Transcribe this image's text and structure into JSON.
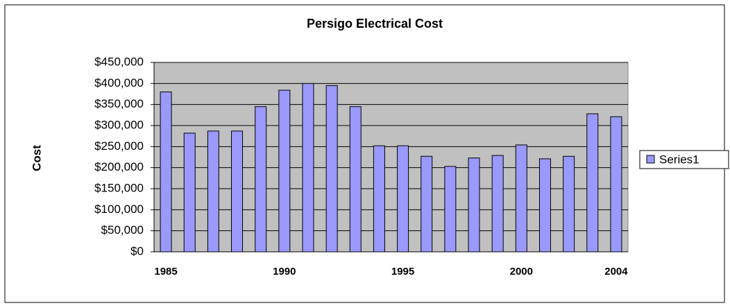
{
  "chart_data": {
    "type": "bar",
    "title": "Persigo Electrical Cost",
    "y_label": "Cost",
    "categories": [
      "1985",
      null,
      null,
      null,
      null,
      "1990",
      null,
      null,
      null,
      null,
      "1995",
      null,
      null,
      null,
      null,
      "2000",
      null,
      null,
      null,
      "2004"
    ],
    "series": [
      {
        "name": "Series1",
        "color": "#9999ff",
        "values": [
          380000,
          282000,
          287000,
          287000,
          345000,
          384000,
          400000,
          395000,
          345000,
          252000,
          252000,
          227000,
          203000,
          223000,
          229000,
          254000,
          221000,
          227000,
          328000,
          321000
        ]
      }
    ],
    "ylim": [
      0,
      450000
    ],
    "yticks": [
      {
        "value": 0,
        "label": "$0"
      },
      {
        "value": 50000,
        "label": "$50,000"
      },
      {
        "value": 100000,
        "label": "$100,000"
      },
      {
        "value": 150000,
        "label": "$150,000"
      },
      {
        "value": 200000,
        "label": "$200,000"
      },
      {
        "value": 250000,
        "label": "$250,000"
      },
      {
        "value": 300000,
        "label": "$300,000"
      },
      {
        "value": 350000,
        "label": "$350,000"
      },
      {
        "value": 400000,
        "label": "$400,000"
      },
      {
        "value": 450000,
        "label": "$450,000"
      }
    ],
    "grid": true,
    "legend": "right"
  }
}
